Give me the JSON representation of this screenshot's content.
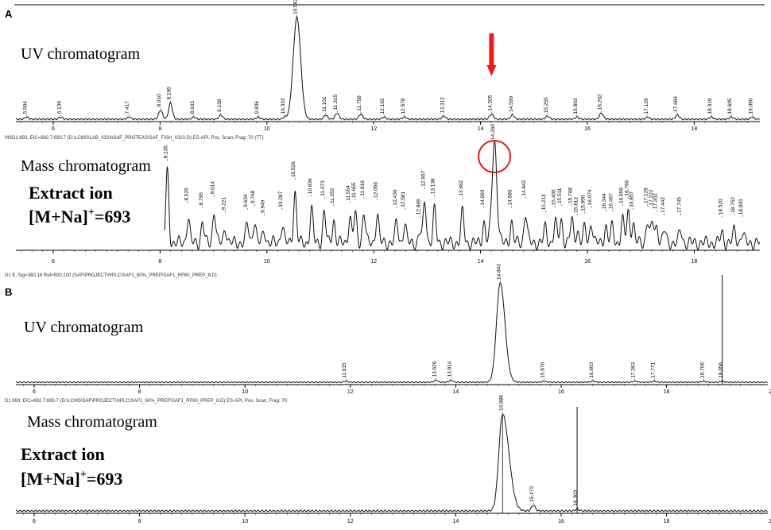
{
  "panel_a": {
    "letter": "A",
    "uv_title": "UV chromatogram",
    "mass_title": "Mass chromatogram",
    "extract_line1": "Extract ion",
    "extract_line2_pre": "[M+Na]",
    "extract_line2_sup": "+",
    "extract_line2_post": "=693",
    "mass_header": "MSD1 693, EIC=692.7:693.7 (D:\\LCMS\\LAB_0324\\SAF_PROTEAS\\SAF_FISH_0310.D)     ES-API, Pos, Scan, Frag: 70 (TT)",
    "arrow_color": "#ee1c1c",
    "circle_color": "#e31b1b"
  },
  "panel_b": {
    "letter": "B",
    "uv_header": "D1 E, Sig=360,16 Ref=500,100 (SAF\\PROJECT\\HPLC\\SAF1_60%_PREP\\SAF1_RF60_PREP_8.D)",
    "uv_title": "UV chromatogram",
    "mass_header": "D1 693, EIC=692.7:693.7 (D:\\LCMS\\SAF\\PROJECT\\HPLC\\SAF1_60%_PREP\\SAF1_RF60_PREP_8.D)     ES-API, Pos, Scan, Frag: 70",
    "mass_title": "Mass chromatogram",
    "extract_line1": "Extract ion",
    "extract_line2_pre": "[M+Na]",
    "extract_line2_sup": "+",
    "extract_line2_post": "=693"
  },
  "chart_data": [
    {
      "id": "A-UV",
      "type": "line",
      "xlim": [
        5.0,
        19.0
      ],
      "ticks": [
        6,
        8,
        10,
        12,
        14,
        16,
        18
      ],
      "peaks": [
        {
          "x": 5.504,
          "y": 2,
          "label": "5.504"
        },
        {
          "x": 6.139,
          "y": 2,
          "label": "6.139"
        },
        {
          "x": 7.417,
          "y": 2,
          "label": "7.417"
        },
        {
          "x": 8.01,
          "y": 9,
          "label": "8.010"
        },
        {
          "x": 8.195,
          "y": 16,
          "label": "8.195"
        },
        {
          "x": 8.633,
          "y": 2,
          "label": "8.633"
        },
        {
          "x": 9.138,
          "y": 4,
          "label": "9.138"
        },
        {
          "x": 9.836,
          "y": 2,
          "label": "9.836"
        },
        {
          "x": 10.333,
          "y": 2,
          "label": "10.333"
        },
        {
          "x": 10.562,
          "y": 100,
          "label": "10.562"
        },
        {
          "x": 11.101,
          "y": 4,
          "label": "11.101"
        },
        {
          "x": 11.315,
          "y": 6,
          "label": "11.315"
        },
        {
          "x": 11.758,
          "y": 5,
          "label": "11.758"
        },
        {
          "x": 12.192,
          "y": 2,
          "label": "12.192"
        },
        {
          "x": 12.578,
          "y": 2,
          "label": "12.578"
        },
        {
          "x": 13.312,
          "y": 3,
          "label": "13.312"
        },
        {
          "x": 14.205,
          "y": 5,
          "label": "14.205"
        },
        {
          "x": 14.599,
          "y": 4,
          "label": "14.599"
        },
        {
          "x": 15.255,
          "y": 3,
          "label": "15.255"
        },
        {
          "x": 15.803,
          "y": 2,
          "label": "15.803"
        },
        {
          "x": 16.262,
          "y": 6,
          "label": "16.262"
        },
        {
          "x": 17.129,
          "y": 2,
          "label": "17.129"
        },
        {
          "x": 17.684,
          "y": 4,
          "label": "17.684"
        },
        {
          "x": 18.319,
          "y": 2,
          "label": "18.319"
        },
        {
          "x": 18.695,
          "y": 2,
          "label": "18.695"
        },
        {
          "x": 19.09,
          "y": 2,
          "label": "19.090"
        }
      ]
    },
    {
      "id": "A-Mass",
      "type": "line",
      "xlim": [
        5.0,
        19.0
      ],
      "ticks": [
        6,
        8,
        10,
        12,
        14,
        16,
        18
      ],
      "highlighted_peak": "14.260",
      "peaks": [
        {
          "x": 8.135,
          "y": 70,
          "label": "8.135"
        },
        {
          "x": 8.526,
          "y": 25,
          "label": "8.526"
        },
        {
          "x": 8.795,
          "y": 20,
          "label": "8.795"
        },
        {
          "x": 9.014,
          "y": 32,
          "label": "9.014"
        },
        {
          "x": 9.221,
          "y": 15,
          "label": "9.221"
        },
        {
          "x": 9.634,
          "y": 18,
          "label": "9.634"
        },
        {
          "x": 9.768,
          "y": 22,
          "label": "9.768"
        },
        {
          "x": 9.949,
          "y": 12,
          "label": "9.949"
        },
        {
          "x": 10.287,
          "y": 18,
          "label": "10.287"
        },
        {
          "x": 10.526,
          "y": 50,
          "label": "10.526"
        },
        {
          "x": 10.836,
          "y": 32,
          "label": "10.836"
        },
        {
          "x": 11.073,
          "y": 30,
          "label": "11.073"
        },
        {
          "x": 11.252,
          "y": 22,
          "label": "11.252"
        },
        {
          "x": 11.554,
          "y": 25,
          "label": "11.554"
        },
        {
          "x": 11.655,
          "y": 28,
          "label": "11.655"
        },
        {
          "x": 11.816,
          "y": 30,
          "label": "11.816"
        },
        {
          "x": 12.066,
          "y": 28,
          "label": "12.066"
        },
        {
          "x": 12.43,
          "y": 20,
          "label": "12.430"
        },
        {
          "x": 12.581,
          "y": 18,
          "label": "12.581"
        },
        {
          "x": 12.869,
          "y": 10,
          "label": "12.869"
        },
        {
          "x": 12.957,
          "y": 40,
          "label": "12.957"
        },
        {
          "x": 13.138,
          "y": 32,
          "label": "13.138"
        },
        {
          "x": 13.662,
          "y": 30,
          "label": "13.662"
        },
        {
          "x": 14.063,
          "y": 20,
          "label": "14.063"
        },
        {
          "x": 14.26,
          "y": 100,
          "label": "14.260"
        },
        {
          "x": 14.58,
          "y": 20,
          "label": "14.580"
        },
        {
          "x": 14.842,
          "y": 30,
          "label": "14.842"
        },
        {
          "x": 15.213,
          "y": 15,
          "label": "15.213"
        },
        {
          "x": 15.4,
          "y": 20,
          "label": "15.400"
        },
        {
          "x": 15.511,
          "y": 22,
          "label": "15.511"
        },
        {
          "x": 15.708,
          "y": 22,
          "label": "15.708"
        },
        {
          "x": 15.812,
          "y": 12,
          "label": "15.812"
        },
        {
          "x": 15.95,
          "y": 14,
          "label": "15.950"
        },
        {
          "x": 16.074,
          "y": 20,
          "label": "16.074"
        },
        {
          "x": 16.344,
          "y": 16,
          "label": "16.344"
        },
        {
          "x": 16.467,
          "y": 16,
          "label": "16.467"
        },
        {
          "x": 16.659,
          "y": 22,
          "label": "16.659"
        },
        {
          "x": 16.766,
          "y": 30,
          "label": "16.766"
        },
        {
          "x": 16.857,
          "y": 18,
          "label": "16.857"
        },
        {
          "x": 17.126,
          "y": 22,
          "label": "17.126"
        },
        {
          "x": 17.222,
          "y": 20,
          "label": "17.222"
        },
        {
          "x": 17.302,
          "y": 16,
          "label": "17.302"
        },
        {
          "x": 17.442,
          "y": 12,
          "label": "17.442"
        },
        {
          "x": 17.745,
          "y": 12,
          "label": "17.745"
        },
        {
          "x": 18.52,
          "y": 10,
          "label": "18.520"
        },
        {
          "x": 18.752,
          "y": 12,
          "label": "18.752"
        },
        {
          "x": 18.903,
          "y": 10,
          "label": "18.903"
        }
      ]
    },
    {
      "id": "B-UV",
      "type": "line",
      "xlim": [
        5.0,
        20.0
      ],
      "ticks": [
        6,
        8,
        10,
        12,
        14,
        16,
        18,
        20
      ],
      "peaks": [
        {
          "x": 11.915,
          "y": 1,
          "label": "11.915"
        },
        {
          "x": 13.626,
          "y": 2,
          "label": "13.626"
        },
        {
          "x": 13.914,
          "y": 2,
          "label": "13.914"
        },
        {
          "x": 14.843,
          "y": 100,
          "label": "14.843"
        },
        {
          "x": 15.676,
          "y": 1,
          "label": "15.676"
        },
        {
          "x": 16.603,
          "y": 1,
          "label": "16.603"
        },
        {
          "x": 17.393,
          "y": 1,
          "label": "17.393"
        },
        {
          "x": 17.771,
          "y": 1,
          "label": "17.771"
        },
        {
          "x": 18.706,
          "y": 1,
          "label": "18.706"
        },
        {
          "x": 19.056,
          "y": 1,
          "label": "19.056"
        }
      ]
    },
    {
      "id": "B-Mass",
      "type": "line",
      "xlim": [
        5.0,
        20.0
      ],
      "ticks": [
        6,
        8,
        10,
        12,
        14,
        16,
        18,
        20
      ],
      "peaks": [
        {
          "x": 14.888,
          "y": 100,
          "label": "14.888"
        },
        {
          "x": 15.472,
          "y": 6,
          "label": "15.472"
        },
        {
          "x": 16.303,
          "y": 2,
          "label": "16.303"
        }
      ]
    }
  ]
}
